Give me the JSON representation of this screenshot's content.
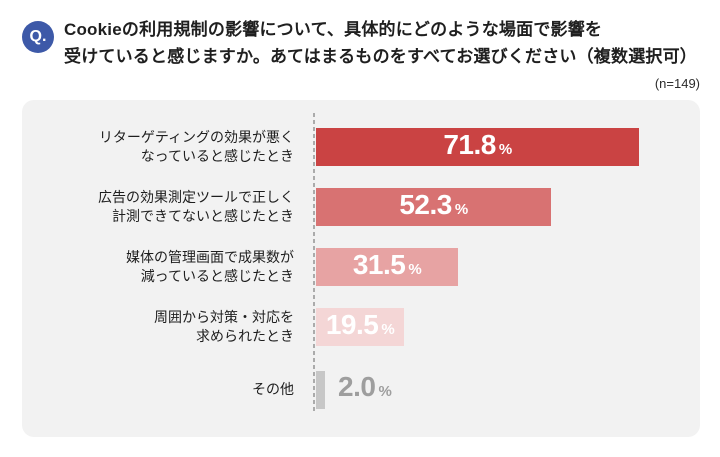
{
  "header": {
    "q_label": "Q.",
    "question_lines": [
      "Cookieの利用規制の影響について、具体的にどのような場面で影響を",
      "受けていると感じますか。あてはまるものをすべてお選びください（複数選択可）"
    ],
    "sample_size": "(n=149)"
  },
  "chart_data": {
    "type": "bar",
    "orientation": "horizontal",
    "title": "",
    "categories": [
      [
        "リターゲティングの効果が悪く",
        "なっていると感じたとき"
      ],
      [
        "広告の効果測定ツールで正しく",
        "計測できてないと感じたとき"
      ],
      [
        "媒体の管理画面で成果数が",
        "減っていると感じたとき"
      ],
      [
        "周囲から対策・対応を",
        "求められたとき"
      ],
      [
        "その他"
      ]
    ],
    "values": [
      71.8,
      52.3,
      31.5,
      19.5,
      2.0
    ],
    "value_labels": [
      "71.8",
      "52.3",
      "31.5",
      "19.5",
      "2.0"
    ],
    "unit": "%",
    "xlim": [
      0,
      80
    ],
    "grid": false,
    "legend": null,
    "bar_colors": [
      "#CA4343",
      "#D87272",
      "#E7A3A3",
      "#F4D6D6",
      "#C7C7C7"
    ],
    "value_inside": [
      true,
      true,
      true,
      true,
      false
    ],
    "value_text_colors": [
      "#FFFFFF",
      "#FFFFFF",
      "#FFFFFF",
      "#FFFFFF",
      "#9E9E9E"
    ]
  },
  "colors": {
    "page_background": "#FFFFFF",
    "card_background": "#F2F2F2",
    "q_badge_background": "#3D59A8",
    "axis_dash": "#ABABAB",
    "question_text": "#1F1F1F"
  }
}
